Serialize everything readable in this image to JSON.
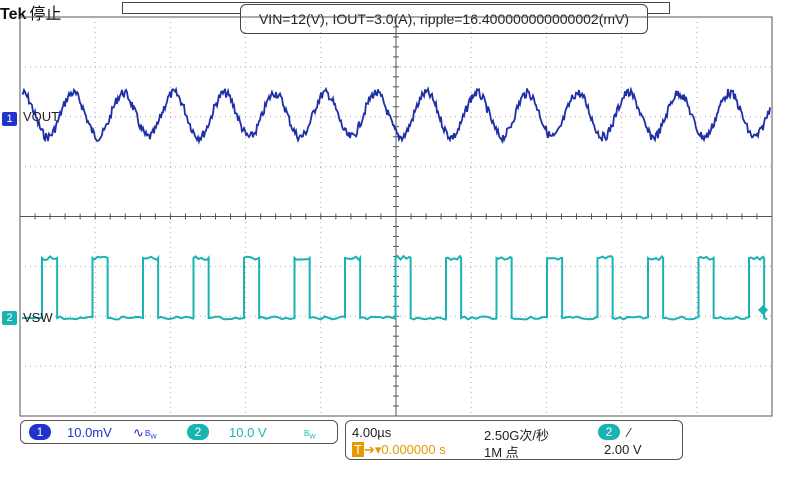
{
  "header": {
    "brand": "Tek",
    "status": "停止",
    "title": "VIN=12(V), IOUT=3.0(A), ripple=16.400000000000002(mV)"
  },
  "channels": {
    "ch1": {
      "marker": "1",
      "label": "VOUT",
      "color": "#1f2fa6"
    },
    "ch2": {
      "marker": "2",
      "label": "VSW",
      "color": "#1ab3b3"
    }
  },
  "readouts": {
    "ch1_chip": "1",
    "ch1_scale": "10.0mV",
    "ch1_coupling": "∿",
    "ch1_bw": "B",
    "ch1_bw_sub": "W",
    "ch2_chip": "2",
    "ch2_scale": "10.0 V",
    "ch2_bw": "B",
    "ch2_bw_sub": "W",
    "timebase": "4.00µs",
    "sample_rate": "2.50G次/秒",
    "trigger_chip": "2",
    "trigger_slope": "∕",
    "trigger_pos_icon": "T",
    "trigger_pos_arrow": "➔▾",
    "trigger_pos": "0.000000 s",
    "record_length": "1M 点",
    "trigger_level": "2.00 V"
  },
  "icons": {
    "ch1_marker": "channel-1-marker-icon",
    "ch2_marker": "channel-2-marker-icon",
    "trigger": "trigger-position-icon"
  }
}
